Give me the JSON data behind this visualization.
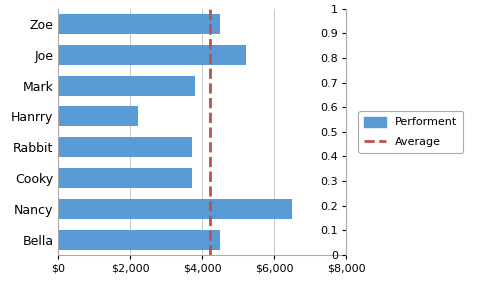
{
  "categories": [
    "Bella",
    "Nancy",
    "Cooky",
    "Rabbit",
    "Hanrry",
    "Mark",
    "Joe",
    "Zoe"
  ],
  "values": [
    4500,
    6500,
    3700,
    3700,
    2200,
    3800,
    5200,
    4500
  ],
  "bar_color": "#5B9BD5",
  "average_value": 4200,
  "average_color": "#C0504D",
  "xlim": [
    0,
    8000
  ],
  "xticks": [
    0,
    2000,
    4000,
    6000,
    8000
  ],
  "xtick_labels": [
    "$0",
    "$2,000",
    "$4,000",
    "$6,000",
    "$8,000"
  ],
  "right_ylim": [
    0,
    1
  ],
  "right_yticks": [
    0,
    0.1,
    0.2,
    0.3,
    0.4,
    0.5,
    0.6,
    0.7,
    0.8,
    0.9,
    1.0
  ],
  "legend_performent": "Performent",
  "legend_average": "Average",
  "bg_color": "#FFFFFF",
  "plot_bg": "#FFFFFF",
  "grid_color": "#C8C8C8",
  "border_color": "#AAAAAA",
  "bar_height": 0.65,
  "fontsize": 9,
  "tick_fontsize": 8
}
